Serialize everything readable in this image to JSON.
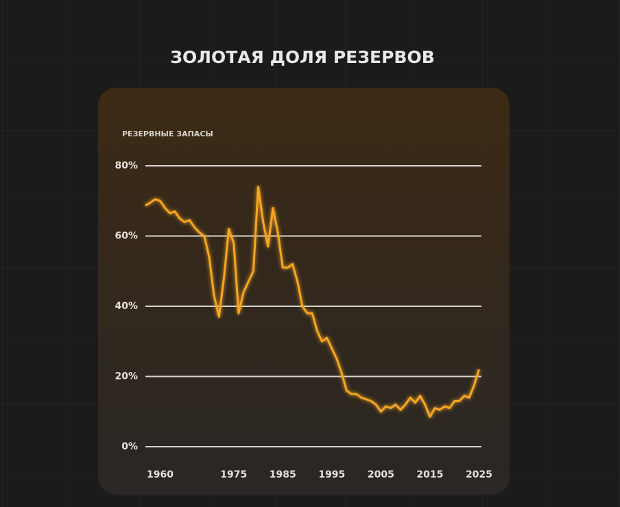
{
  "chart_data": {
    "type": "line",
    "title": "ЗОЛОТАЯ ДОЛЯ РЕЗЕРВОВ",
    "y_label": "РЕЗЕРВНЫЕ ЗАПАСЫ",
    "color": "#f6a623",
    "grid": true,
    "x": [
      1957,
      1958,
      1959,
      1960,
      1961,
      1962,
      1963,
      1964,
      1965,
      1966,
      1967,
      1968,
      1969,
      1970,
      1971,
      1972,
      1973,
      1974,
      1975,
      1976,
      1977,
      1978,
      1979,
      1980,
      1981,
      1982,
      1983,
      1984,
      1985,
      1986,
      1987,
      1988,
      1989,
      1990,
      1991,
      1992,
      1993,
      1994,
      1995,
      1996,
      1997,
      1998,
      1999,
      2000,
      2001,
      2002,
      2003,
      2004,
      2005,
      2006,
      2007,
      2008,
      2009,
      2010,
      2011,
      2012,
      2013,
      2014,
      2015,
      2016,
      2017,
      2018,
      2019,
      2020,
      2021,
      2022,
      2023,
      2024,
      2025
    ],
    "values": [
      68.7,
      69.5,
      70.5,
      70,
      68,
      66.5,
      67,
      65,
      64,
      64.5,
      62.5,
      61,
      60,
      54,
      43,
      37,
      48,
      62,
      58,
      38,
      44,
      47,
      50,
      74,
      64,
      57,
      68,
      61,
      51,
      51,
      52,
      47,
      40,
      38,
      38,
      33,
      30,
      31,
      28,
      25,
      21,
      16,
      15,
      15,
      14,
      13.5,
      13,
      12,
      10,
      11.5,
      11,
      12,
      10.5,
      12,
      14,
      12.5,
      14.5,
      12,
      8.5,
      11,
      10.5,
      11.5,
      11,
      13,
      13,
      14.5,
      14,
      17.5,
      22
    ],
    "xlim": [
      1957,
      2025.5
    ],
    "xticks": [
      1960,
      1975,
      1985,
      1995,
      2005,
      2015,
      2025
    ],
    "ylim": [
      0,
      80
    ],
    "yticks": [
      {
        "value": 0,
        "label": "0%"
      },
      {
        "value": 20,
        "label": "20%"
      },
      {
        "value": 40,
        "label": "40%"
      },
      {
        "value": 60,
        "label": "60%"
      },
      {
        "value": 80,
        "label": "80%"
      }
    ]
  }
}
